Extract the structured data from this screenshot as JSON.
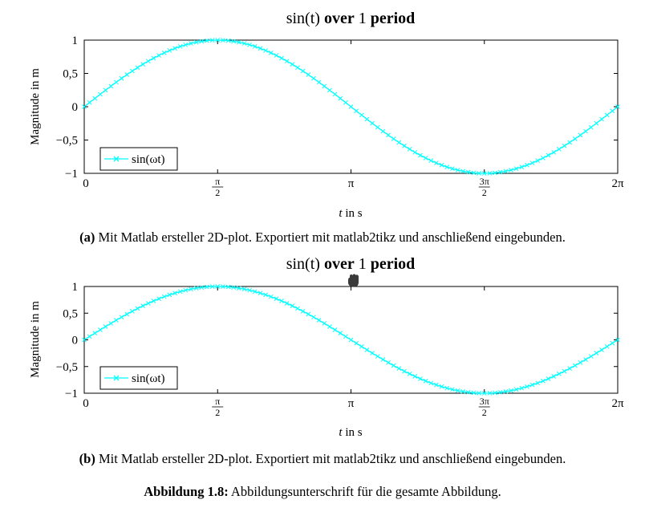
{
  "chart_data": [
    {
      "type": "line",
      "title": {
        "math": "sin(t)",
        "bold": "over",
        "num": "1",
        "bold2": "period"
      },
      "xlabel": {
        "var": "t",
        "rest": "in s"
      },
      "ylabel": "Magnitude in m",
      "xlim": [
        0,
        6.2832
      ],
      "ylim": [
        -1,
        1
      ],
      "xticks": [
        0,
        1.5708,
        3.1416,
        4.7124,
        6.2832
      ],
      "xtick_labels": [
        "0",
        "π/2",
        "π",
        "3π/2",
        "2π"
      ],
      "yticks": [
        -1,
        -0.5,
        0,
        0.5,
        1
      ],
      "ytick_labels": [
        "−1",
        "−0,5",
        "0",
        "0,5",
        "1"
      ],
      "series": [
        {
          "name": "sin(ωt)",
          "color": "#00ffff",
          "marker": "x",
          "function": "sin",
          "n_points": 101
        }
      ],
      "legend_position": "bottom-left",
      "grid": false
    },
    {
      "type": "line",
      "title": {
        "math": "sin(t)",
        "bold": "over",
        "num": "1",
        "bold2": "period"
      },
      "xlabel": {
        "var": "t",
        "rest": "in s"
      },
      "ylabel": "Magnitude in m",
      "xlim": [
        0,
        6.2832
      ],
      "ylim": [
        -1,
        1
      ],
      "xticks": [
        0,
        1.5708,
        3.1416,
        4.7124,
        6.2832
      ],
      "xtick_labels": [
        "0",
        "π/2",
        "π",
        "3π/2",
        "2π"
      ],
      "yticks": [
        -1,
        -0.5,
        0,
        0.5,
        1
      ],
      "ytick_labels": [
        "−1",
        "−0,5",
        "0",
        "0,5",
        "1"
      ],
      "series": [
        {
          "name": "sin(ωt)",
          "color": "#00ffff",
          "marker": "x",
          "function": "sin",
          "n_points": 101
        }
      ],
      "legend_position": "bottom-left",
      "grid": false
    }
  ],
  "captions": {
    "a": {
      "tag": "(a)",
      "text": "Mit Matlab ersteller 2D-plot. Exportiert mit matlab2tikz und anschließend eingebunden."
    },
    "b": {
      "tag": "(b)",
      "text": "Mit Matlab ersteller 2D-plot. Exportiert mit matlab2tikz und anschließend eingebunden."
    },
    "figure": {
      "tag": "Abbildung 1.8:",
      "text": "Abbildungsunterschrift für die gesamte Abbildung."
    }
  },
  "cursor": {
    "icon": "grab-hand-icon"
  }
}
